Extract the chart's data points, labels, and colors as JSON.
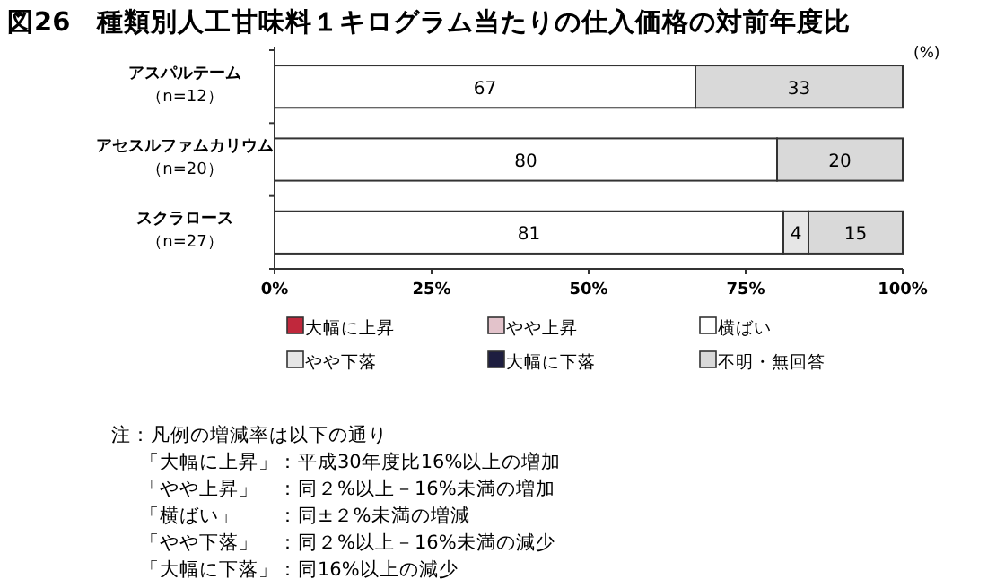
{
  "chart_data": {
    "type": "bar",
    "orientation": "horizontal",
    "stacked": true,
    "title": "図26　種類別人工甘味料１キログラム当たりの仕入価格の対前年度比",
    "categories": [
      "アスパルテーム（n=12）",
      "アセスルファムカリウム（n=20）",
      "スクラロース（n=27）"
    ],
    "series": [
      {
        "name": "大幅に上昇",
        "color": "#c0283c",
        "values": [
          0,
          0,
          0
        ],
        "value_labels": [
          null,
          null,
          null
        ]
      },
      {
        "name": "やや上昇",
        "color": "#e3c3cb",
        "values": [
          0,
          0,
          0
        ],
        "value_labels": [
          null,
          null,
          null
        ]
      },
      {
        "name": "横ばい",
        "color": "#ffffff",
        "values": [
          67,
          80,
          81
        ],
        "value_labels": [
          "67",
          "80",
          "81"
        ]
      },
      {
        "name": "やや下落",
        "color": "#e6e6e6",
        "values": [
          0,
          0,
          4
        ],
        "value_labels": [
          null,
          null,
          "4"
        ]
      },
      {
        "name": "大幅に下落",
        "color": "#1e1e40",
        "values": [
          0,
          0,
          0
        ],
        "value_labels": [
          null,
          null,
          null
        ]
      },
      {
        "name": "不明・無回答",
        "color": "#d9d9d9",
        "values": [
          33,
          20,
          15
        ],
        "value_labels": [
          "33",
          "20",
          "15"
        ]
      }
    ],
    "xlim": [
      0,
      100
    ],
    "xticks": [
      {
        "value": 0,
        "label": "0%"
      },
      {
        "value": 25,
        "label": "25%"
      },
      {
        "value": 50,
        "label": "50%"
      },
      {
        "value": 75,
        "label": "75%"
      },
      {
        "value": 100,
        "label": "100%"
      }
    ],
    "legend": "bottom",
    "grid": false,
    "annotations": [
      "(%)",
      "注：凡例の増減率は以下の通り",
      "「大幅に上昇」：平成30年度比16%以上の増加",
      "「やや上昇」　：同２%以上－16%未満の増加",
      "「横ばい」　　：同±２%未満の増減",
      "「やや下落」　：同２%以上－16%未満の減少",
      "「大幅に下落」：同16%以上の減少"
    ]
  }
}
